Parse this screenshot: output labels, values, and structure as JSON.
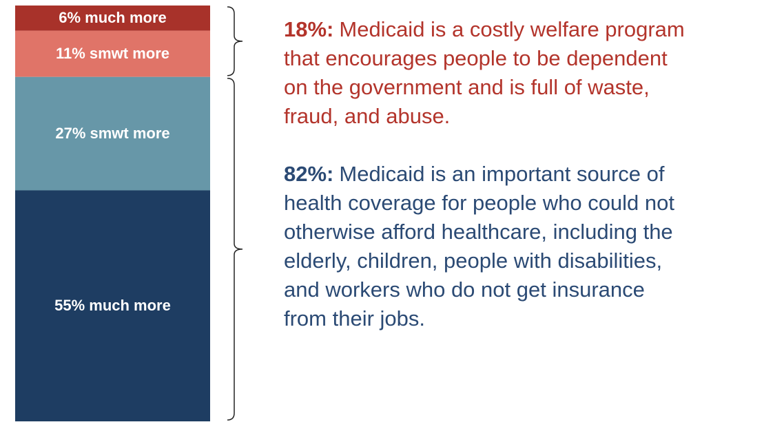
{
  "chart_data": {
    "type": "stacked-bar",
    "ylim": [
      0,
      99
    ],
    "series": [
      {
        "name": "much more",
        "color": "#a8322a",
        "values": [
          6
        ],
        "value_labels": [
          "6% much more"
        ]
      },
      {
        "name": "smwt more",
        "color": "#e07468",
        "values": [
          11
        ],
        "value_labels": [
          "11% smwt more"
        ]
      },
      {
        "name": "smwt more",
        "color": "#6797a8",
        "values": [
          27
        ],
        "value_labels": [
          "27% smwt more"
        ]
      },
      {
        "name": "much more",
        "color": "#1e3d62",
        "values": [
          55
        ],
        "value_labels": [
          "55% much more"
        ]
      }
    ],
    "annotations": [
      {
        "lead": "18%:",
        "color": "#b3342b",
        "lines": [
          "Medicaid is a costly welfare program",
          "that encourages people to be dependent",
          "on the government and is full of waste,",
          "fraud, and abuse."
        ]
      },
      {
        "lead": "82%:",
        "color": "#2b4a74",
        "lines": [
          "Medicaid is an important source of",
          "health coverage for people who could not",
          "otherwise afford healthcare, including the",
          "elderly, children, people with disabilities,",
          "and workers who do not get insurance",
          "from their jobs."
        ]
      }
    ]
  }
}
